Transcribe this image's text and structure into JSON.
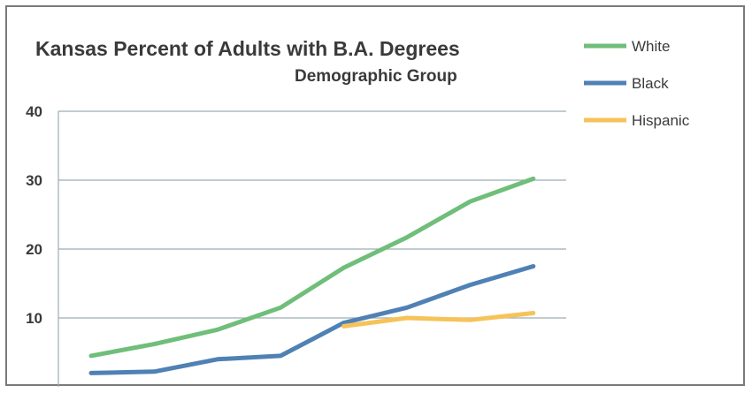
{
  "chart_data": {
    "type": "line",
    "title": "Kansas Percent of Adults with B.A. Degrees",
    "subtitle": "Demographic Group",
    "xlabel": "",
    "ylabel": "",
    "ylim": [
      0,
      40
    ],
    "yticks": [
      10,
      20,
      30,
      40
    ],
    "grid": true,
    "legend_position": "top-right",
    "x": [
      1,
      2,
      3,
      4,
      5,
      6,
      7,
      8
    ],
    "series": [
      {
        "name": "White",
        "color": "#6fbe7a",
        "values": [
          4.5,
          6.2,
          8.3,
          11.5,
          17.3,
          21.7,
          26.9,
          30.2
        ]
      },
      {
        "name": "Black",
        "color": "#4f81b4",
        "values": [
          2.0,
          2.2,
          4.0,
          4.5,
          9.3,
          11.5,
          14.8,
          17.5
        ]
      },
      {
        "name": "Hispanic",
        "color": "#f6c35a",
        "values": [
          null,
          null,
          null,
          null,
          8.8,
          10.0,
          9.7,
          10.7
        ]
      }
    ]
  }
}
